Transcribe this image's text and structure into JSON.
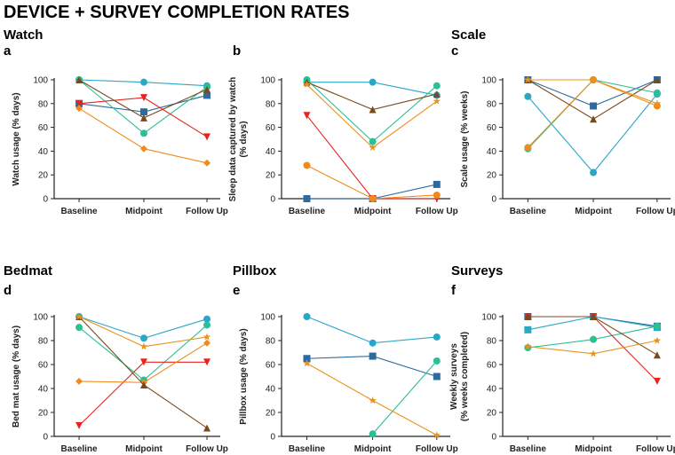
{
  "figure_title": "DEVICE + SURVEY COMPLETION RATES",
  "colors": {
    "teal_blue": "#2aa7c7",
    "navy": "#2e6a9e",
    "green": "#2bbf95",
    "red": "#e8231e",
    "orange": "#f08a1c",
    "brown": "#7a4a1c"
  },
  "chart_data": [
    {
      "type": "line",
      "section": "Watch",
      "letter": "a",
      "ylabel": [
        "Watch usage (% days)"
      ],
      "categories": [
        "Baseline",
        "Midpoint",
        "Follow Up"
      ],
      "ylim": [
        0,
        100
      ],
      "yticks": [
        "0",
        "20",
        "40",
        "60",
        "80",
        "100"
      ],
      "series": [
        {
          "name": "participant-teal",
          "color": "#2aa7c7",
          "marker": "circle",
          "values": [
            100,
            98,
            95
          ]
        },
        {
          "name": "participant-navy",
          "color": "#2e6a9e",
          "marker": "square",
          "values": [
            80,
            73,
            87
          ]
        },
        {
          "name": "participant-green",
          "color": "#2bbf95",
          "marker": "circle",
          "values": [
            100,
            55,
            94
          ]
        },
        {
          "name": "participant-red",
          "color": "#e8231e",
          "marker": "triangle-down",
          "values": [
            80,
            85,
            52
          ]
        },
        {
          "name": "participant-orange",
          "color": "#f08a1c",
          "marker": "diamond",
          "values": [
            76,
            42,
            30
          ]
        },
        {
          "name": "participant-brown",
          "color": "#7a4a1c",
          "marker": "triangle-up",
          "values": [
            100,
            68,
            92
          ]
        }
      ]
    },
    {
      "type": "line",
      "section": "",
      "letter": "b",
      "ylabel": [
        "Sleep data captured by watch",
        "(% days)"
      ],
      "categories": [
        "Baseline",
        "Midpoint",
        "Follow Up"
      ],
      "ylim": [
        0,
        100
      ],
      "yticks": [
        "0",
        "20",
        "40",
        "60",
        "80",
        "100"
      ],
      "series": [
        {
          "name": "participant-teal",
          "color": "#2aa7c7",
          "marker": "circle",
          "values": [
            98,
            98,
            87
          ]
        },
        {
          "name": "participant-navy",
          "color": "#2e6a9e",
          "marker": "square",
          "values": [
            0,
            0,
            12
          ]
        },
        {
          "name": "participant-green",
          "color": "#2bbf95",
          "marker": "circle",
          "values": [
            100,
            48,
            95
          ]
        },
        {
          "name": "participant-red",
          "color": "#e8231e",
          "marker": "triangle-down",
          "values": [
            70,
            0,
            0
          ]
        },
        {
          "name": "participant-orange",
          "color": "#f08a1c",
          "marker": "circle",
          "values": [
            28,
            0,
            3
          ]
        },
        {
          "name": "participant-brown",
          "color": "#7a4a1c",
          "marker": "triangle-up",
          "values": [
            98,
            75,
            88
          ]
        },
        {
          "name": "participant-tan",
          "color": "#e8931e",
          "marker": "star",
          "values": [
            96,
            43,
            82
          ]
        }
      ]
    },
    {
      "type": "line",
      "section": "Scale",
      "letter": "c",
      "ylabel": [
        "Scale usage (% weeks)"
      ],
      "categories": [
        "Baseline",
        "Midpoint",
        "Follow Up"
      ],
      "ylim": [
        0,
        100
      ],
      "yticks": [
        "0",
        "20",
        "40",
        "60",
        "80",
        "100"
      ],
      "series": [
        {
          "name": "participant-navy",
          "color": "#2e6a9e",
          "marker": "square",
          "values": [
            100,
            78,
            100
          ]
        },
        {
          "name": "participant-teal",
          "color": "#2aa7c7",
          "marker": "circle",
          "values": [
            86,
            22,
            88
          ]
        },
        {
          "name": "participant-green",
          "color": "#2bbf95",
          "marker": "circle",
          "values": [
            42,
            100,
            89
          ]
        },
        {
          "name": "participant-orange",
          "color": "#f08a1c",
          "marker": "circle",
          "values": [
            43,
            100,
            78
          ]
        },
        {
          "name": "participant-brown",
          "color": "#7a4a1c",
          "marker": "triangle-up",
          "values": [
            100,
            67,
            100
          ]
        },
        {
          "name": "participant-tan",
          "color": "#e8931e",
          "marker": "star",
          "values": [
            100,
            100,
            80
          ]
        }
      ]
    },
    {
      "type": "line",
      "section": "Bedmat",
      "letter": "d",
      "ylabel": [
        "Bed mat usage (% days)"
      ],
      "categories": [
        "Baseline",
        "Midpoint",
        "Follow Up"
      ],
      "ylim": [
        0,
        100
      ],
      "yticks": [
        "0",
        "20",
        "40",
        "60",
        "80",
        "100"
      ],
      "series": [
        {
          "name": "participant-teal",
          "color": "#2aa7c7",
          "marker": "circle",
          "values": [
            100,
            82,
            98
          ]
        },
        {
          "name": "participant-green",
          "color": "#2bbf95",
          "marker": "circle",
          "values": [
            91,
            47,
            93
          ]
        },
        {
          "name": "participant-red",
          "color": "#e8231e",
          "marker": "triangle-down",
          "values": [
            9,
            62,
            62
          ]
        },
        {
          "name": "participant-orange",
          "color": "#f08a1c",
          "marker": "diamond",
          "values": [
            46,
            45,
            78
          ]
        },
        {
          "name": "participant-brown",
          "color": "#7a4a1c",
          "marker": "triangle-up",
          "values": [
            100,
            43,
            7
          ]
        },
        {
          "name": "participant-tan",
          "color": "#e8931e",
          "marker": "star",
          "values": [
            100,
            75,
            83
          ]
        }
      ]
    },
    {
      "type": "line",
      "section": "Pillbox",
      "letter": "e",
      "ylabel": [
        "Pillbox usage (% days)"
      ],
      "categories": [
        "Baseline",
        "Midpoint",
        "Follow Up"
      ],
      "ylim": [
        0,
        100
      ],
      "yticks": [
        "0",
        "20",
        "40",
        "60",
        "80",
        "100"
      ],
      "series": [
        {
          "name": "participant-teal",
          "color": "#2aa7c7",
          "marker": "circle",
          "values": [
            100,
            78,
            83
          ]
        },
        {
          "name": "participant-navy",
          "color": "#2e6a9e",
          "marker": "square",
          "values": [
            65,
            67,
            50
          ]
        },
        {
          "name": "participant-green",
          "color": "#2bbf95",
          "marker": "circle",
          "values": [
            null,
            2,
            63
          ]
        },
        {
          "name": "participant-tan",
          "color": "#e8931e",
          "marker": "star",
          "values": [
            61,
            30,
            1
          ]
        }
      ]
    },
    {
      "type": "line",
      "section": "Surveys",
      "letter": "f",
      "ylabel": [
        "Weekly surveys",
        "(% weeks completed)"
      ],
      "categories": [
        "Baseline",
        "Midpoint",
        "Follow Up"
      ],
      "ylim": [
        0,
        100
      ],
      "yticks": [
        "0",
        "20",
        "40",
        "60",
        "80",
        "100"
      ],
      "series": [
        {
          "name": "participant-navy",
          "color": "#2e6a9e",
          "marker": "square",
          "values": [
            100,
            100,
            92
          ]
        },
        {
          "name": "participant-teal",
          "color": "#2aa7c7",
          "marker": "square",
          "values": [
            89,
            100,
            91
          ]
        },
        {
          "name": "participant-green",
          "color": "#2bbf95",
          "marker": "circle",
          "values": [
            74,
            81,
            92
          ]
        },
        {
          "name": "participant-red",
          "color": "#e8231e",
          "marker": "triangle-down",
          "values": [
            100,
            100,
            46
          ]
        },
        {
          "name": "participant-brown",
          "color": "#7a4a1c",
          "marker": "triangle-up",
          "values": [
            100,
            100,
            68
          ]
        },
        {
          "name": "participant-tan",
          "color": "#e8931e",
          "marker": "star",
          "values": [
            75,
            69,
            80
          ]
        }
      ]
    }
  ]
}
